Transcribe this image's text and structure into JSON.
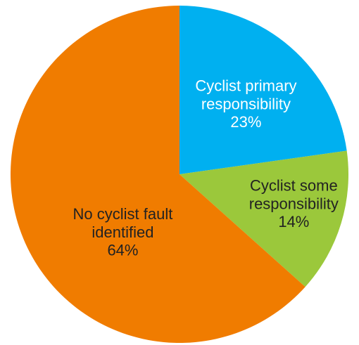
{
  "chart_data": {
    "type": "pie",
    "categories": [
      "Cyclist primary responsibility",
      "Cyclist some responsibility",
      "No cyclist fault identified"
    ],
    "values": [
      23,
      14,
      64
    ],
    "value_labels": [
      "23%",
      "14%",
      "64%"
    ],
    "colors": [
      "#00b0f0",
      "#9bc83b",
      "#f07c00"
    ]
  }
}
